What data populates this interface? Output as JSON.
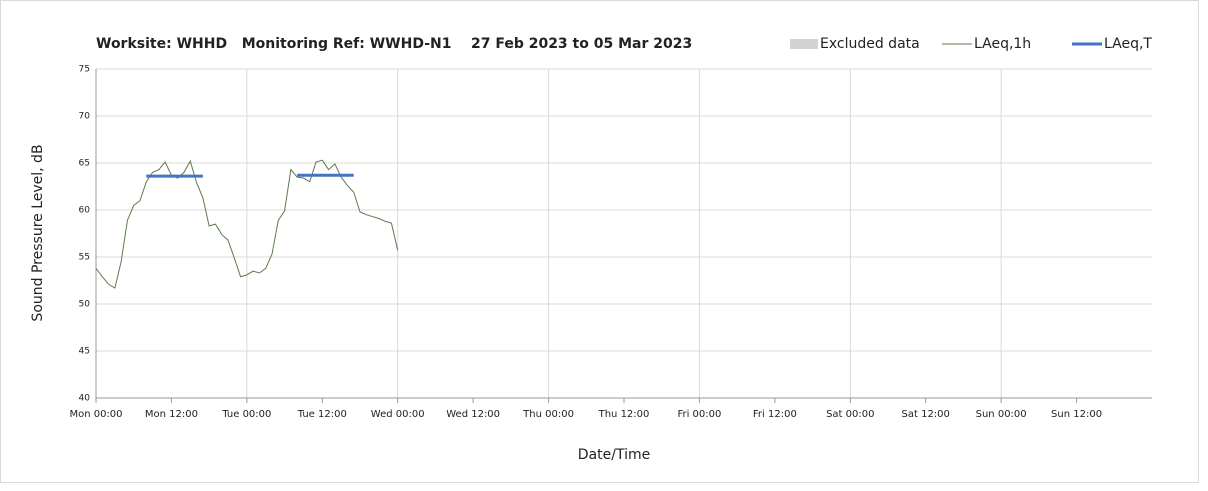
{
  "chart_data": {
    "type": "line",
    "title": "Worksite: WHHD   Monitoring Ref: WWHD-N1    27 Feb 2023 to 05 Mar 2023",
    "xlabel": "Date/Time",
    "ylabel": "Sound Pressure Level, dB",
    "legend_extra": {
      "name": "Excluded data",
      "color": "#d3d3d3"
    },
    "x": [
      0,
      1,
      2,
      3,
      4,
      5,
      6,
      7,
      8,
      9,
      10,
      11,
      12,
      13,
      14,
      15,
      16,
      17,
      18,
      19,
      20,
      21,
      22,
      23,
      24,
      25,
      26,
      27,
      28,
      29,
      30,
      31,
      32,
      33,
      34,
      35,
      36,
      37,
      38,
      39,
      40,
      41,
      42,
      43,
      44,
      45,
      46,
      47,
      48
    ],
    "series": [
      {
        "name": "LAeq,1h",
        "color": "#5b7a4c",
        "width": 1,
        "values": [
          53.8,
          52.9,
          52.1,
          51.7,
          54.5,
          58.9,
          60.5,
          61,
          63,
          64,
          64.3,
          65.1,
          63.7,
          63.4,
          64,
          65.2,
          62.9,
          61.3,
          58.3,
          58.5,
          57.4,
          56.8,
          54.9,
          52.9,
          53.1,
          53.5,
          53.3,
          53.8,
          55.3,
          58.9,
          59.9,
          64.3,
          63.5,
          63.4,
          63,
          65.1,
          65.3,
          64.3,
          64.9,
          63.5,
          62.6,
          61.9,
          59.8,
          59.5,
          59.3,
          59.1,
          58.8,
          58.6,
          55.7
        ]
      },
      {
        "name": "LAeq,T",
        "color": "#4472c4",
        "width": 3,
        "values": [
          null,
          null,
          null,
          null,
          null,
          null,
          null,
          null,
          63.6,
          63.6,
          63.6,
          63.6,
          63.6,
          63.6,
          63.6,
          63.6,
          63.6,
          63.6,
          null,
          null,
          null,
          null,
          null,
          null,
          null,
          null,
          null,
          null,
          null,
          null,
          null,
          null,
          63.7,
          63.7,
          63.7,
          63.7,
          63.7,
          63.7,
          63.7,
          63.7,
          63.7,
          63.7,
          null,
          null,
          null,
          null,
          null,
          null,
          null
        ]
      }
    ],
    "xlim": [
      0,
      168
    ],
    "xticks": [
      {
        "value": 0,
        "label": "Mon 00:00"
      },
      {
        "value": 12,
        "label": "Mon 12:00"
      },
      {
        "value": 24,
        "label": "Tue 00:00"
      },
      {
        "value": 36,
        "label": "Tue 12:00"
      },
      {
        "value": 48,
        "label": "Wed 00:00"
      },
      {
        "value": 60,
        "label": "Wed 12:00"
      },
      {
        "value": 72,
        "label": "Thu 00:00"
      },
      {
        "value": 84,
        "label": "Thu 12:00"
      },
      {
        "value": 96,
        "label": "Fri 00:00"
      },
      {
        "value": 108,
        "label": "Fri 12:00"
      },
      {
        "value": 120,
        "label": "Sat 00:00"
      },
      {
        "value": 132,
        "label": "Sat 12:00"
      },
      {
        "value": 144,
        "label": "Sun 00:00"
      },
      {
        "value": 156,
        "label": "Sun 12:00"
      }
    ],
    "ylim": [
      40,
      75
    ],
    "yticks": [
      40,
      45,
      50,
      55,
      60,
      65,
      70,
      75
    ],
    "grid": true,
    "legend": "top-right"
  }
}
